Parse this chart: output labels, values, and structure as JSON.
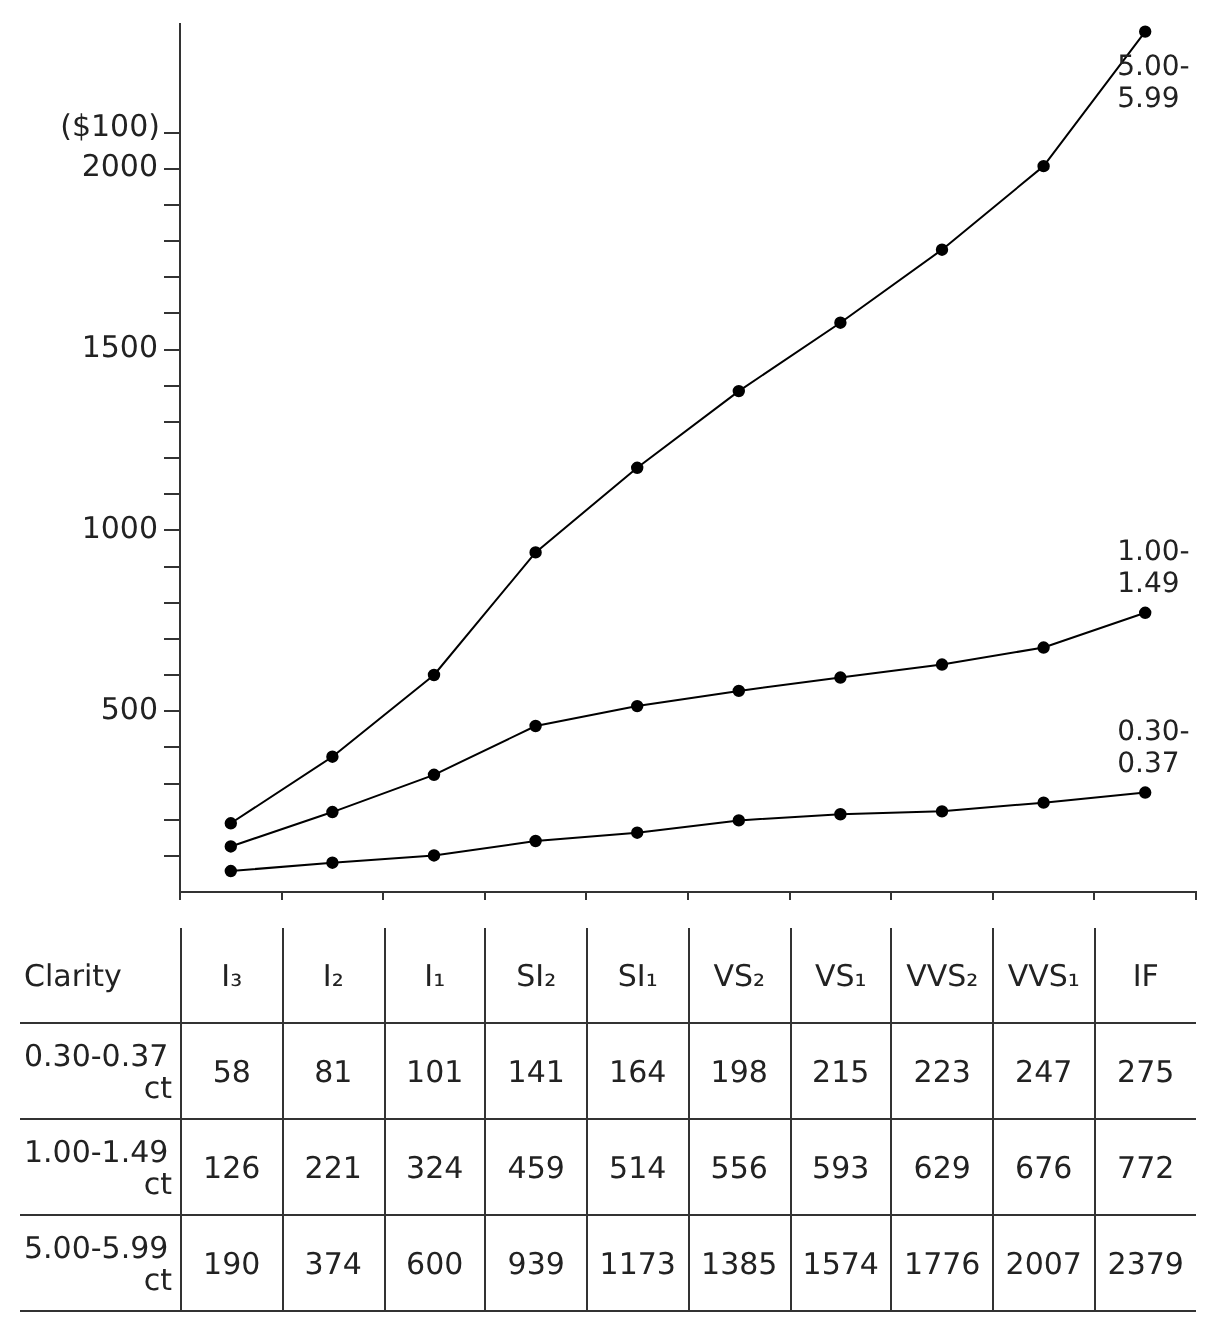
{
  "chart_data": {
    "type": "line",
    "xlabel": "Clarity",
    "ylabel": "($100)",
    "categories": [
      "I₃",
      "I₂",
      "I₁",
      "SI₂",
      "SI₁",
      "VS₂",
      "VS₁",
      "VVS₂",
      "VVS₁",
      "IF"
    ],
    "series": [
      {
        "name": "0.30-0.37",
        "color": "#000000",
        "values": [
          58,
          81,
          101,
          141,
          164,
          198,
          215,
          223,
          247,
          275
        ]
      },
      {
        "name": "1.00-1.49",
        "color": "#000000",
        "values": [
          126,
          221,
          324,
          459,
          514,
          556,
          593,
          629,
          676,
          772
        ]
      },
      {
        "name": "5.00-5.99",
        "color": "#000000",
        "values": [
          190,
          374,
          600,
          939,
          1173,
          1385,
          1574,
          1776,
          2007,
          2379
        ]
      }
    ],
    "annotations": [
      "ct",
      "ct",
      "ct"
    ],
    "ylim": [
      0,
      2400
    ],
    "yticks": [
      {
        "value": 100,
        "label": null
      },
      {
        "value": 200,
        "label": null
      },
      {
        "value": 300,
        "label": null
      },
      {
        "value": 400,
        "label": null
      },
      500,
      {
        "value": 600,
        "label": null
      },
      {
        "value": 700,
        "label": null
      },
      {
        "value": 800,
        "label": null
      },
      {
        "value": 900,
        "label": null
      },
      1000,
      {
        "value": 1100,
        "label": null
      },
      {
        "value": 1200,
        "label": null
      },
      {
        "value": 1300,
        "label": null
      },
      {
        "value": 1400,
        "label": null
      },
      1500,
      {
        "value": 1600,
        "label": null
      },
      {
        "value": 1700,
        "label": null
      },
      {
        "value": 1800,
        "label": null
      },
      {
        "value": 1900,
        "label": null
      },
      2000,
      {
        "value": 2100,
        "label": null
      }
    ],
    "grid": false,
    "legend": false,
    "marker": "circle",
    "line_style": "solid",
    "data_labels": true
  }
}
